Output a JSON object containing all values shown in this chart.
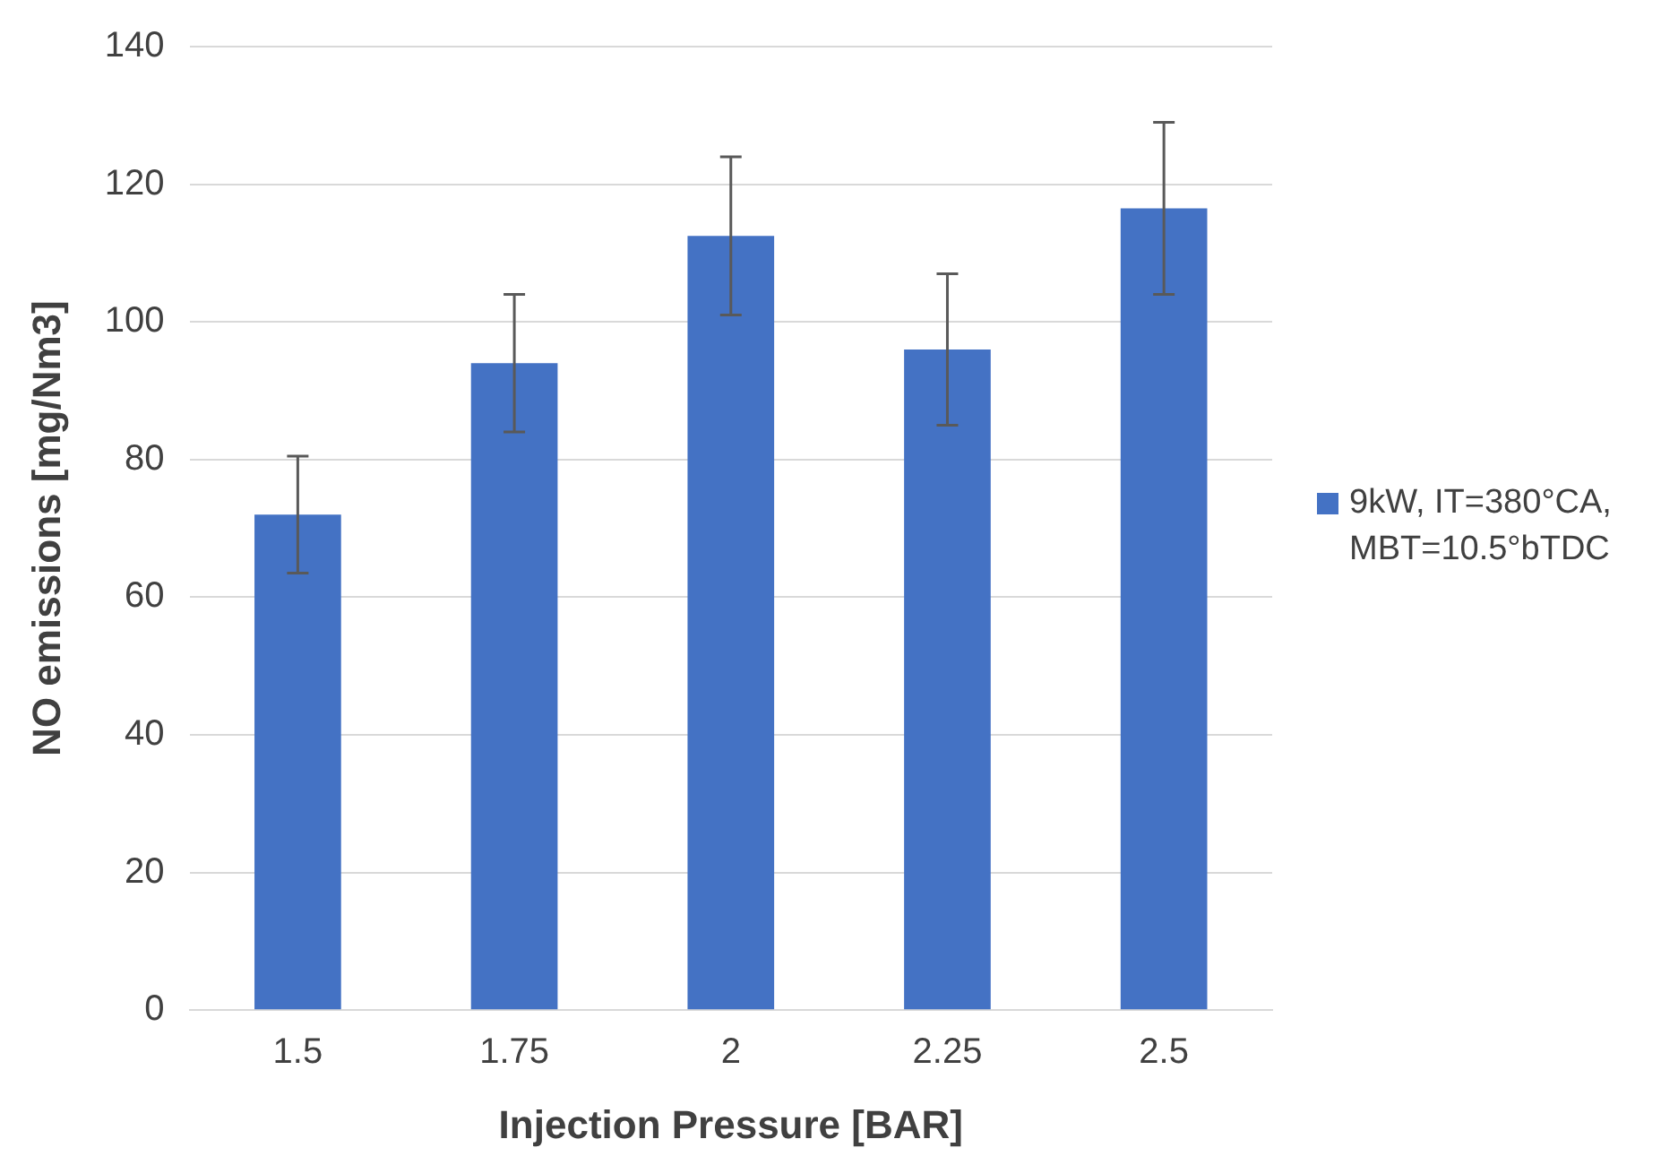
{
  "chart_data": {
    "type": "bar",
    "xlabel": "Injection Pressure [BAR]",
    "ylabel": "NO emissions [mg/Nm3]",
    "categories": [
      "1.5",
      "1.75",
      "2",
      "2.25",
      "2.5"
    ],
    "series": [
      {
        "name": "9kW, IT=380°CA, MBT=10.5°bTDC",
        "color": "#4472c4",
        "values": [
          72,
          94,
          112.5,
          96,
          116.5
        ],
        "errors": [
          8.5,
          10,
          11.5,
          11,
          12.5
        ]
      }
    ],
    "ylim": [
      0,
      140
    ],
    "yticks": [
      0,
      20,
      40,
      60,
      80,
      100,
      120,
      140
    ],
    "grid": "y",
    "legend": "right"
  }
}
